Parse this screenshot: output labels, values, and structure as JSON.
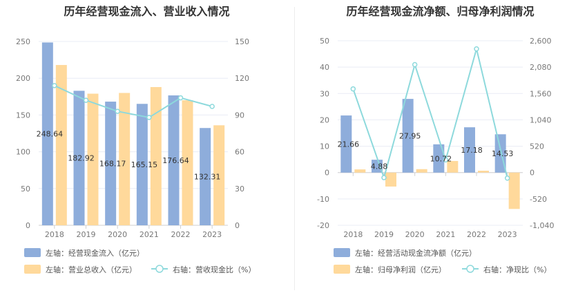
{
  "colors": {
    "bar_primary": "#8eaddb",
    "bar_secondary": "#ffd99b",
    "line": "#8dd9dc",
    "grid": "#e9ecf5",
    "axis": "#cfcfcf"
  },
  "chart_data": [
    {
      "type": "bar",
      "title": "历年经营现金流入、营业收入情况",
      "categories": [
        "2018",
        "2019",
        "2020",
        "2021",
        "2022",
        "2023"
      ],
      "ylim_left": [
        0,
        250
      ],
      "ylim_right": [
        0,
        150
      ],
      "yticks_left": [
        "0",
        "50",
        "100",
        "150",
        "200",
        "250"
      ],
      "yticks_right": [
        "0",
        "30",
        "60",
        "90",
        "120",
        "150"
      ],
      "grid": true,
      "legend_position": "bottom",
      "series": [
        {
          "name": "左轴：经营现金流入（亿元）",
          "kind": "bar",
          "axis": "left",
          "values": [
            248.64,
            182.92,
            168.17,
            165.15,
            176.64,
            132.31
          ],
          "labels": [
            "248.64",
            "182.92",
            "168.17",
            "165.15",
            "176.64",
            "132.31"
          ]
        },
        {
          "name": "左轴：营业总收入（亿元）",
          "kind": "bar",
          "axis": "left",
          "values": [
            218,
            179,
            180,
            188,
            170,
            136
          ]
        },
        {
          "name": "右轴：营收现金比（%）",
          "kind": "line",
          "axis": "right",
          "values": [
            114,
            102,
            93,
            88,
            104,
            97
          ]
        }
      ]
    },
    {
      "type": "bar",
      "title": "历年经营现金流净额、归母净利润情况",
      "categories": [
        "2018",
        "2019",
        "2020",
        "2021",
        "2022",
        "2023"
      ],
      "ylim_left": [
        -20,
        50
      ],
      "ylim_right": [
        -1040,
        2600
      ],
      "yticks_left": [
        "-20",
        "-10",
        "0",
        "10",
        "20",
        "30",
        "40",
        "50"
      ],
      "yticks_right": [
        "-1,040",
        "-520",
        "0",
        "520",
        "1,040",
        "1,560",
        "2,080",
        "2,600"
      ],
      "yticks_right_values": [
        -1040,
        -520,
        0,
        520,
        1040,
        1560,
        2080,
        2600
      ],
      "grid": true,
      "legend_position": "bottom",
      "series": [
        {
          "name": "左轴：经营活动现金流净额（亿元）",
          "kind": "bar",
          "axis": "left",
          "values": [
            21.66,
            4.88,
            27.95,
            10.72,
            17.18,
            14.53
          ],
          "labels": [
            "21.66",
            "4.88",
            "27.95",
            "10.72",
            "17.18",
            "14.53"
          ]
        },
        {
          "name": "左轴：归母净利润（亿元）",
          "kind": "bar",
          "axis": "left",
          "values": [
            1.2,
            -5.3,
            1.3,
            4.4,
            0.7,
            -13.8
          ]
        },
        {
          "name": "右轴：净现比（%）",
          "kind": "line",
          "axis": "right",
          "values": [
            1650,
            -100,
            2130,
            250,
            2440,
            -110
          ]
        }
      ]
    }
  ]
}
